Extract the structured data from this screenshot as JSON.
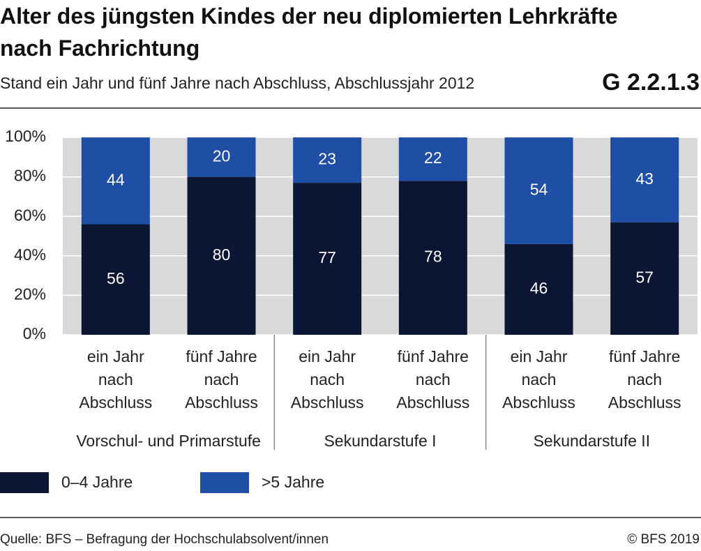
{
  "chart_data": {
    "type": "stacked_bar",
    "title": "Alter des jüngsten Kindes der neu diplomierten Lehrkräfte nach Fachrichtung",
    "subtitle": "Stand ein Jahr und fünf Jahre nach Abschluss, Abschlussjahr 2012",
    "chart_id": "G 2.2.1.3",
    "categories": [
      "ein Jahr nach Abschluss",
      "fünf Jahre nach Abschluss",
      "ein Jahr nach Abschluss",
      "fünf Jahre nach Abschluss",
      "ein Jahr nach Abschluss",
      "fünf Jahre nach Abschluss"
    ],
    "groups": [
      "Vorschul- und Primarstufe",
      "Sekundarstufe I",
      "Sekundarstufe II"
    ],
    "series": [
      {
        "name": "0–4 Jahre",
        "color": "#0b1634",
        "values": [
          56,
          80,
          77,
          78,
          46,
          57
        ]
      },
      {
        "name": ">5 Jahre",
        "color": "#1f4ea6",
        "values": [
          44,
          20,
          23,
          22,
          54,
          43
        ]
      }
    ],
    "ylim": [
      0,
      100
    ],
    "yticks": [
      {
        "value": 0,
        "label": "0%"
      },
      {
        "value": 20,
        "label": "20%"
      },
      {
        "value": 40,
        "label": "40%"
      },
      {
        "value": 60,
        "label": "60%"
      },
      {
        "value": 80,
        "label": "80%"
      },
      {
        "value": 100,
        "label": "100%"
      }
    ],
    "grid": true,
    "source": "Quelle: BFS – Befragung der Hochschulabsolvent/innen",
    "copyright": "© BFS 2019"
  }
}
